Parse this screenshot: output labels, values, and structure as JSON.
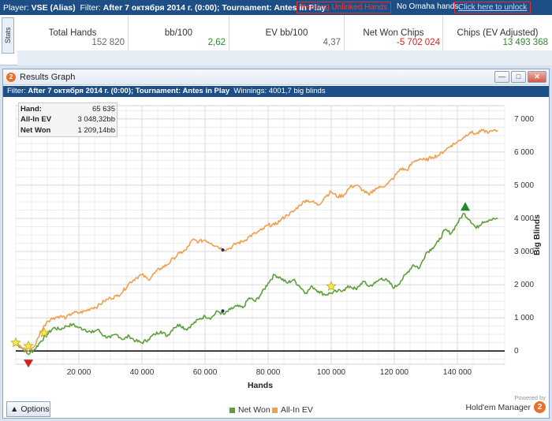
{
  "topbar": {
    "player_label": "Player:",
    "player": "VSE (Alias)",
    "filter_label": "Filter:",
    "filter": "After 7 октября 2014 г. (0:00); Tournament: Antes in Play",
    "warning": "Pending Unlinked Hands",
    "omaha": "No Omaha hands.",
    "unlock": "Click here to unlock"
  },
  "stats": {
    "tab_label": "Stats",
    "columns": [
      "Total Hands",
      "bb/100",
      "EV bb/100",
      "Net Won Chips",
      "Chips (EV Adjusted)"
    ],
    "values": [
      "152 820",
      "2,62",
      "4,37",
      "-5 702 024",
      "13 493 368"
    ],
    "value_colors": [
      "#666666",
      "#2e8b2e",
      "#666666",
      "#d42020",
      "#2e8b2e"
    ]
  },
  "window": {
    "title": "Results Graph",
    "filter_label": "Filter:",
    "filter": "After 7 октября 2014 г. (0:00); Tournament: Antes in Play",
    "winnings": "Winnings: 4001,7 big blinds"
  },
  "tooltip": {
    "rows": [
      {
        "label": "Hand:",
        "value": "65 635"
      },
      {
        "label": "All-In EV",
        "value": "3 048,32bb"
      },
      {
        "label": "Net Won",
        "value": "1 209,14bb"
      }
    ]
  },
  "chart_data": {
    "type": "line",
    "xlabel": "Hands",
    "ylabel": "Big Blinds",
    "xlim": [
      0,
      155000
    ],
    "ylim": [
      -400,
      7400
    ],
    "x_ticks": [
      20000,
      40000,
      60000,
      80000,
      100000,
      120000,
      140000
    ],
    "x_tick_labels": [
      "20 000",
      "40 000",
      "60 000",
      "80 000",
      "100 000",
      "120 000",
      "140 000"
    ],
    "y_ticks": [
      0,
      1000,
      2000,
      3000,
      4000,
      5000,
      6000,
      7000
    ],
    "y_tick_labels": [
      "0",
      "1 000",
      "2 000",
      "3 000",
      "4 000",
      "5 000",
      "6 000",
      "7 000"
    ],
    "grid": true,
    "legend_position": "bottom-center",
    "series": [
      {
        "name": "Net Won",
        "color": "#5e9e3c",
        "x": [
          0,
          2000,
          4000,
          6000,
          8000,
          10000,
          12000,
          14000,
          16000,
          18000,
          20000,
          22000,
          24000,
          26000,
          28000,
          30000,
          32000,
          34000,
          36000,
          38000,
          40000,
          42000,
          44000,
          46000,
          48000,
          50000,
          52000,
          54000,
          56000,
          58000,
          60000,
          62000,
          64000,
          66000,
          68000,
          70000,
          72000,
          74000,
          76000,
          78000,
          80000,
          82000,
          84000,
          86000,
          88000,
          90000,
          92000,
          94000,
          96000,
          98000,
          100000,
          102000,
          104000,
          106000,
          108000,
          110000,
          112000,
          114000,
          116000,
          118000,
          120000,
          122000,
          124000,
          126000,
          128000,
          130000,
          132000,
          134000,
          136000,
          138000,
          140000,
          142000,
          144000,
          146000,
          148000,
          150000,
          152820
        ],
        "values": [
          250,
          80,
          -100,
          50,
          300,
          500,
          700,
          650,
          750,
          800,
          700,
          650,
          550,
          650,
          450,
          400,
          500,
          350,
          450,
          300,
          250,
          350,
          500,
          600,
          450,
          700,
          800,
          650,
          800,
          950,
          1050,
          1000,
          1200,
          1100,
          1250,
          1350,
          1300,
          1600,
          1500,
          1750,
          2050,
          2300,
          2200,
          2050,
          2150,
          1950,
          1750,
          1950,
          1800,
          1700,
          1750,
          1800,
          1850,
          1950,
          1850,
          2100,
          1950,
          2050,
          2200,
          2100,
          1900,
          2100,
          2350,
          2600,
          2500,
          2950,
          3100,
          3300,
          3650,
          3550,
          3850,
          4150,
          3950,
          3700,
          3900,
          3950,
          4000
        ]
      },
      {
        "name": "All-In EV",
        "color": "#f0a050",
        "x": [
          0,
          2000,
          4000,
          6000,
          8000,
          10000,
          12000,
          14000,
          16000,
          18000,
          20000,
          22000,
          24000,
          26000,
          28000,
          30000,
          32000,
          34000,
          36000,
          38000,
          40000,
          42000,
          44000,
          46000,
          48000,
          50000,
          52000,
          54000,
          56000,
          58000,
          60000,
          62000,
          64000,
          66000,
          68000,
          70000,
          72000,
          74000,
          76000,
          78000,
          80000,
          82000,
          84000,
          86000,
          88000,
          90000,
          92000,
          94000,
          96000,
          98000,
          100000,
          102000,
          104000,
          106000,
          108000,
          110000,
          112000,
          114000,
          116000,
          118000,
          120000,
          122000,
          124000,
          126000,
          128000,
          130000,
          132000,
          134000,
          136000,
          138000,
          140000,
          142000,
          144000,
          146000,
          148000,
          150000,
          152820
        ],
        "values": [
          250,
          100,
          0,
          150,
          600,
          900,
          1000,
          1050,
          1000,
          1150,
          1150,
          1200,
          1300,
          1350,
          1500,
          1600,
          1650,
          1800,
          2050,
          2200,
          2300,
          2150,
          2350,
          2500,
          2600,
          2800,
          2950,
          3050,
          3350,
          3300,
          3350,
          3250,
          3150,
          3050,
          3100,
          3250,
          3300,
          3450,
          3550,
          3650,
          3800,
          3800,
          3950,
          4100,
          4200,
          4400,
          4550,
          4500,
          4400,
          4650,
          4800,
          4650,
          4700,
          4950,
          5000,
          4850,
          4700,
          4900,
          4950,
          5050,
          5250,
          5500,
          5450,
          5700,
          5800,
          5750,
          5850,
          5900,
          6050,
          6200,
          6300,
          6450,
          6600,
          6550,
          6650,
          6600,
          6650
        ]
      }
    ],
    "markers": [
      {
        "kind": "star",
        "x": 0,
        "y": 250
      },
      {
        "kind": "star",
        "x": 4000,
        "y": 150
      },
      {
        "kind": "star",
        "x": 9000,
        "y": 550
      },
      {
        "kind": "star",
        "x": 100000,
        "y": 1950
      },
      {
        "kind": "min-triangle",
        "x": 4000,
        "y": -380
      },
      {
        "kind": "max-triangle",
        "x": 142500,
        "y": 4350
      },
      {
        "kind": "dot",
        "x": 65635,
        "y": 3048
      },
      {
        "kind": "dot",
        "x": 65635,
        "y": 1209
      }
    ]
  },
  "bottom": {
    "options_label": "Options",
    "legend": [
      {
        "label": "Net Won",
        "color": "#5e9e3c"
      },
      {
        "label": "All-In EV",
        "color": "#f0a050"
      }
    ],
    "powered_by": "Powered by",
    "brand": "Hold'em Manager",
    "brand_badge": "2"
  }
}
